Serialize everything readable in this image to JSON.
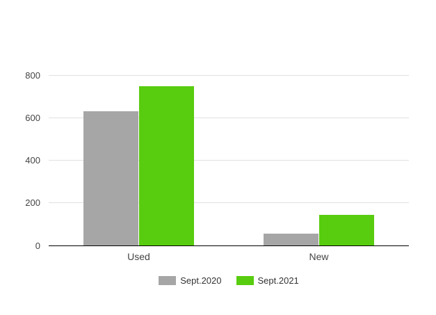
{
  "chart_data": {
    "type": "bar",
    "title": "",
    "categories": [
      "Used",
      "New"
    ],
    "series": [
      {
        "name": "Sept.2020",
        "color": "#a6a6a6",
        "values": [
          630,
          55
        ]
      },
      {
        "name": "Sept.2021",
        "color": "#58cc0f",
        "values": [
          750,
          145
        ]
      }
    ],
    "xlabel": "",
    "ylabel": "",
    "ylim": [
      0,
      860
    ],
    "yticks": [
      0,
      200,
      400,
      600,
      800
    ],
    "grid": true,
    "legend_position": "bottom"
  },
  "colors": {
    "background": "#ffffff",
    "gridline": "#e0e0e0",
    "axis_line": "#000000",
    "tick_label": "#444444",
    "category_label": "#444444",
    "legend_label": "#333333"
  }
}
